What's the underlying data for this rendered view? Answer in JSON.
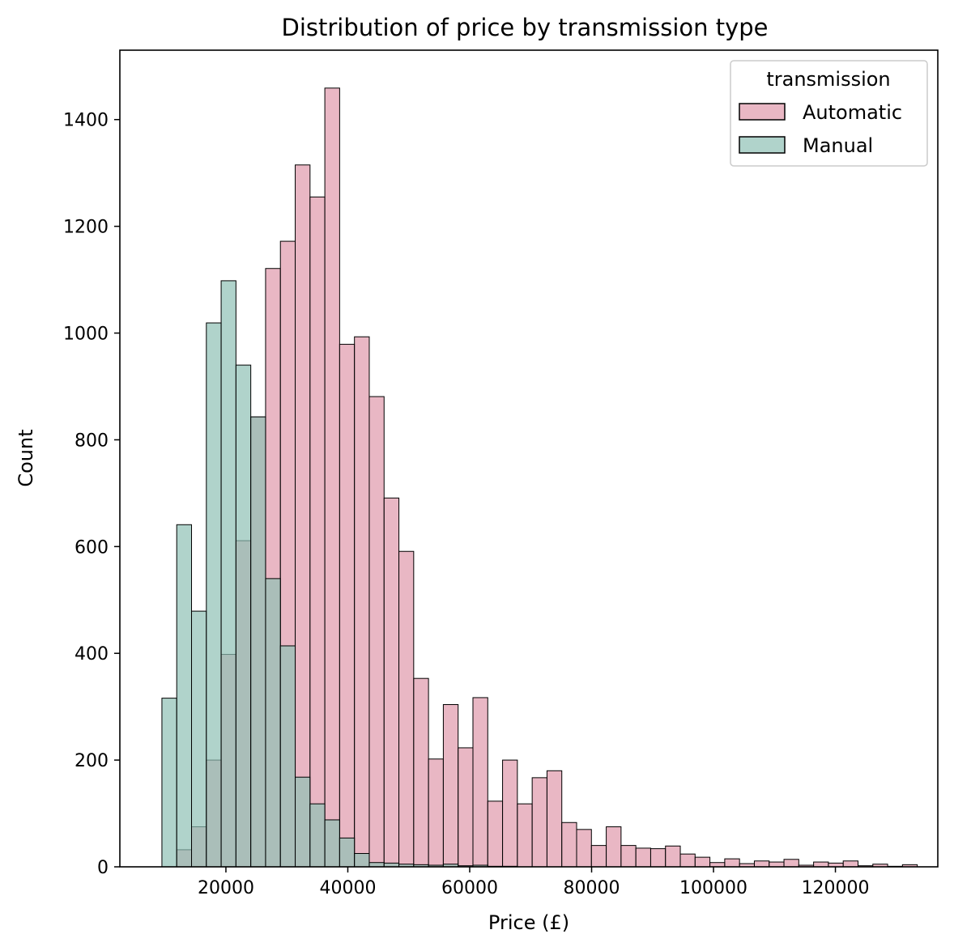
{
  "chart_data": {
    "type": "bar",
    "title": "Distribution of price by transmission type",
    "xlabel": "Price (£)",
    "ylabel": "Count",
    "xlim": [
      2600,
      136800
    ],
    "ylim": [
      0,
      1530
    ],
    "xticks": [
      20000,
      40000,
      60000,
      80000,
      100000,
      120000
    ],
    "yticks": [
      0,
      200,
      400,
      600,
      800,
      1000,
      1200,
      1400
    ],
    "grid": false,
    "legend": {
      "title": "transmission",
      "placement": "top-right"
    },
    "bin_start": 9500,
    "bin_width": 2430,
    "series": [
      {
        "name": "Automatic",
        "color": "#e098ab",
        "values": [
          0,
          32,
          75,
          200,
          398,
          611,
          843,
          1121,
          1172,
          1315,
          1255,
          1459,
          979,
          993,
          881,
          691,
          591,
          353,
          202,
          304,
          223,
          317,
          123,
          200,
          118,
          167,
          180,
          83,
          70,
          40,
          75,
          40,
          35,
          34,
          39,
          24,
          18,
          8,
          15,
          6,
          11,
          9,
          14,
          3,
          9,
          7,
          11,
          2,
          5,
          1,
          4
        ]
      },
      {
        "name": "Manual",
        "color": "#8fc1b5",
        "values": [
          316,
          641,
          479,
          1019,
          1098,
          940,
          843,
          540,
          414,
          168,
          118,
          88,
          54,
          25,
          8,
          7,
          5,
          4,
          3,
          5,
          2,
          3,
          1,
          1,
          0,
          0,
          0,
          0,
          0,
          0,
          0,
          0,
          0,
          0,
          0,
          0,
          0,
          0,
          0,
          0,
          0,
          0,
          0,
          0,
          0,
          0,
          0,
          0,
          0,
          0,
          0
        ]
      }
    ]
  }
}
